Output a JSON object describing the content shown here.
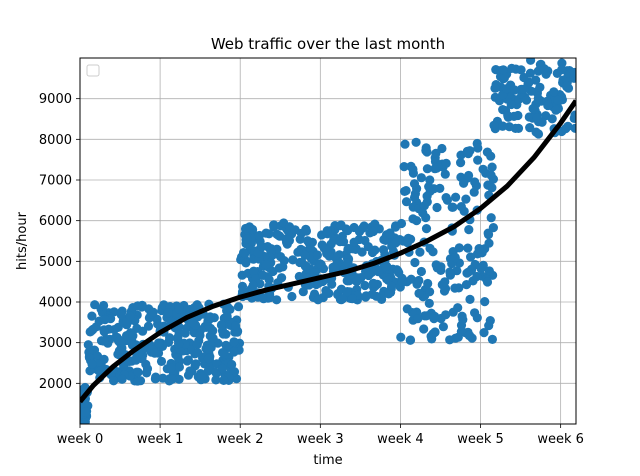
{
  "chart_data": {
    "type": "scatter",
    "title": "Web traffic over the last month",
    "xlabel": "time",
    "ylabel": "hits/hour",
    "grid": true,
    "legend": "top-left",
    "xlim": [
      0,
      743
    ],
    "ylim": [
      1000,
      10000
    ],
    "x_ticks": [
      {
        "value": 0,
        "label": "week 0"
      },
      {
        "value": 120,
        "label": "week 1"
      },
      {
        "value": 240,
        "label": "week 2"
      },
      {
        "value": 360,
        "label": "week 3"
      },
      {
        "value": 480,
        "label": "week 4"
      },
      {
        "value": 600,
        "label": "week 5"
      },
      {
        "value": 720,
        "label": "week 6"
      }
    ],
    "y_ticks": [
      2000,
      3000,
      4000,
      5000,
      6000,
      7000,
      8000,
      9000
    ],
    "scatter_color": "#1f77b4",
    "fit_color": "#000000",
    "regimes": [
      {
        "x_range": [
          0,
          12
        ],
        "y_range": [
          1050,
          1900
        ],
        "count": 40
      },
      {
        "x_range": [
          12,
          240
        ],
        "y_range": [
          2050,
          3950
        ],
        "count": 330
      },
      {
        "x_range": [
          240,
          480
        ],
        "y_range": [
          4050,
          5950
        ],
        "count": 330
      },
      {
        "x_range": [
          480,
          620
        ],
        "y_range": [
          3050,
          7950
        ],
        "count": 200
      },
      {
        "x_range": [
          620,
          743
        ],
        "y_range": [
          8100,
          9950
        ],
        "count": 120
      }
    ],
    "fit_curve": [
      {
        "x": 0,
        "y": 1550
      },
      {
        "x": 20,
        "y": 1950
      },
      {
        "x": 50,
        "y": 2420
      },
      {
        "x": 80,
        "y": 2800
      },
      {
        "x": 120,
        "y": 3250
      },
      {
        "x": 160,
        "y": 3620
      },
      {
        "x": 200,
        "y": 3900
      },
      {
        "x": 240,
        "y": 4120
      },
      {
        "x": 280,
        "y": 4300
      },
      {
        "x": 320,
        "y": 4450
      },
      {
        "x": 360,
        "y": 4600
      },
      {
        "x": 400,
        "y": 4750
      },
      {
        "x": 440,
        "y": 4950
      },
      {
        "x": 480,
        "y": 5200
      },
      {
        "x": 520,
        "y": 5500
      },
      {
        "x": 560,
        "y": 5850
      },
      {
        "x": 600,
        "y": 6300
      },
      {
        "x": 640,
        "y": 6850
      },
      {
        "x": 680,
        "y": 7550
      },
      {
        "x": 720,
        "y": 8400
      },
      {
        "x": 743,
        "y": 8950
      }
    ]
  }
}
